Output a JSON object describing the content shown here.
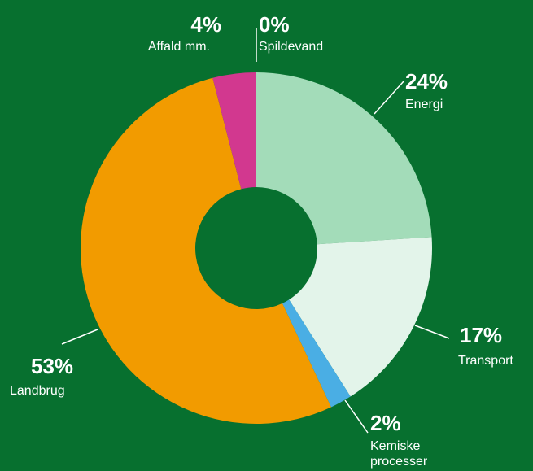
{
  "chart_data": {
    "type": "donut",
    "categories": [
      "Energi",
      "Transport",
      "Kemiske processer",
      "Landbrug",
      "Affald mm.",
      "Spildevand"
    ],
    "values": [
      24,
      17,
      2,
      53,
      4,
      0
    ],
    "value_labels": [
      "24%",
      "17%",
      "2%",
      "53%",
      "4%",
      "0%"
    ],
    "colors": [
      "#a3dcb9",
      "#e3f4ea",
      "#4aaee4",
      "#f29b00",
      "#d2388f",
      "#7fb0c8"
    ]
  }
}
